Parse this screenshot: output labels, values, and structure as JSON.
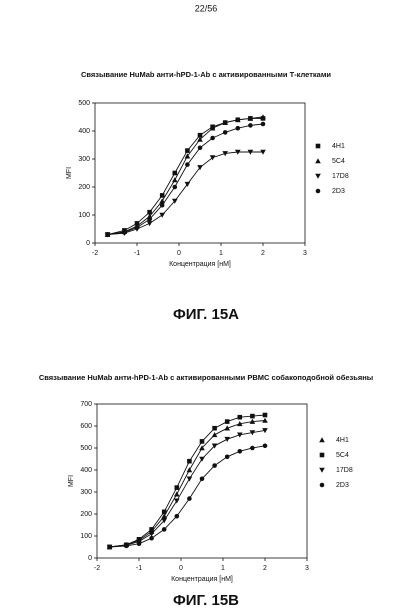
{
  "page_number": "22/56",
  "chart_data": [
    {
      "type": "line",
      "title": "Связывание HuMab анти-hPD-1-Ab с активированными Т-клетками",
      "xlabel": "Концентрация [нМ]",
      "ylabel": "MFI",
      "caption": "ФИГ. 15A",
      "x": [
        -1.7,
        -1.3,
        -1,
        -0.7,
        -0.4,
        -0.1,
        0.2,
        0.5,
        0.8,
        1.1,
        1.4,
        1.7,
        2
      ],
      "xlim": [
        -2,
        3
      ],
      "xticks": [
        -2,
        -1,
        0,
        1,
        2,
        3
      ],
      "ylim": [
        0,
        500
      ],
      "yticks": [
        0,
        100,
        200,
        300,
        400,
        500
      ],
      "series": [
        {
          "name": "4H1",
          "color": "#111111",
          "marker": "square",
          "values": [
            30,
            45,
            70,
            110,
            170,
            250,
            330,
            385,
            415,
            430,
            440,
            445,
            445
          ]
        },
        {
          "name": "5C4",
          "color": "#111111",
          "marker": "triangle-up",
          "values": [
            30,
            40,
            60,
            95,
            150,
            225,
            310,
            370,
            410,
            430,
            440,
            445,
            450
          ]
        },
        {
          "name": "17D8",
          "color": "#111111",
          "marker": "triangle-down",
          "values": [
            30,
            35,
            50,
            70,
            100,
            150,
            210,
            270,
            305,
            320,
            325,
            325,
            325
          ]
        },
        {
          "name": "2D3",
          "color": "#111111",
          "marker": "circle",
          "values": [
            30,
            38,
            55,
            85,
            135,
            200,
            280,
            340,
            375,
            395,
            410,
            420,
            425
          ]
        }
      ]
    },
    {
      "type": "line",
      "title": "Связывание HuMab анти-hPD-1-Ab с активированными РВМС собакоподобной обезьяны",
      "xlabel": "Концентрация [нМ]",
      "ylabel": "MFI",
      "caption": "ФИГ. 15B",
      "x": [
        -1.7,
        -1.3,
        -1,
        -0.7,
        -0.4,
        -0.1,
        0.2,
        0.5,
        0.8,
        1.1,
        1.4,
        1.7,
        2
      ],
      "xlim": [
        -2,
        3
      ],
      "xticks": [
        -2,
        -1,
        0,
        1,
        2,
        3
      ],
      "ylim": [
        0,
        700
      ],
      "yticks": [
        0,
        100,
        200,
        300,
        400,
        500,
        600,
        700
      ],
      "series": [
        {
          "name": "4H1",
          "color": "#111111",
          "marker": "triangle-up",
          "values": [
            50,
            60,
            80,
            120,
            190,
            290,
            400,
            500,
            560,
            590,
            610,
            620,
            625
          ]
        },
        {
          "name": "5C4",
          "color": "#111111",
          "marker": "square",
          "values": [
            50,
            60,
            85,
            130,
            210,
            320,
            440,
            530,
            590,
            620,
            640,
            645,
            650
          ]
        },
        {
          "name": "17D8",
          "color": "#111111",
          "marker": "triangle-down",
          "values": [
            50,
            58,
            75,
            110,
            170,
            260,
            360,
            450,
            510,
            540,
            560,
            570,
            580
          ]
        },
        {
          "name": "2D3",
          "color": "#111111",
          "marker": "circle",
          "values": [
            50,
            55,
            65,
            90,
            130,
            190,
            270,
            360,
            420,
            460,
            485,
            500,
            510
          ]
        }
      ]
    }
  ]
}
